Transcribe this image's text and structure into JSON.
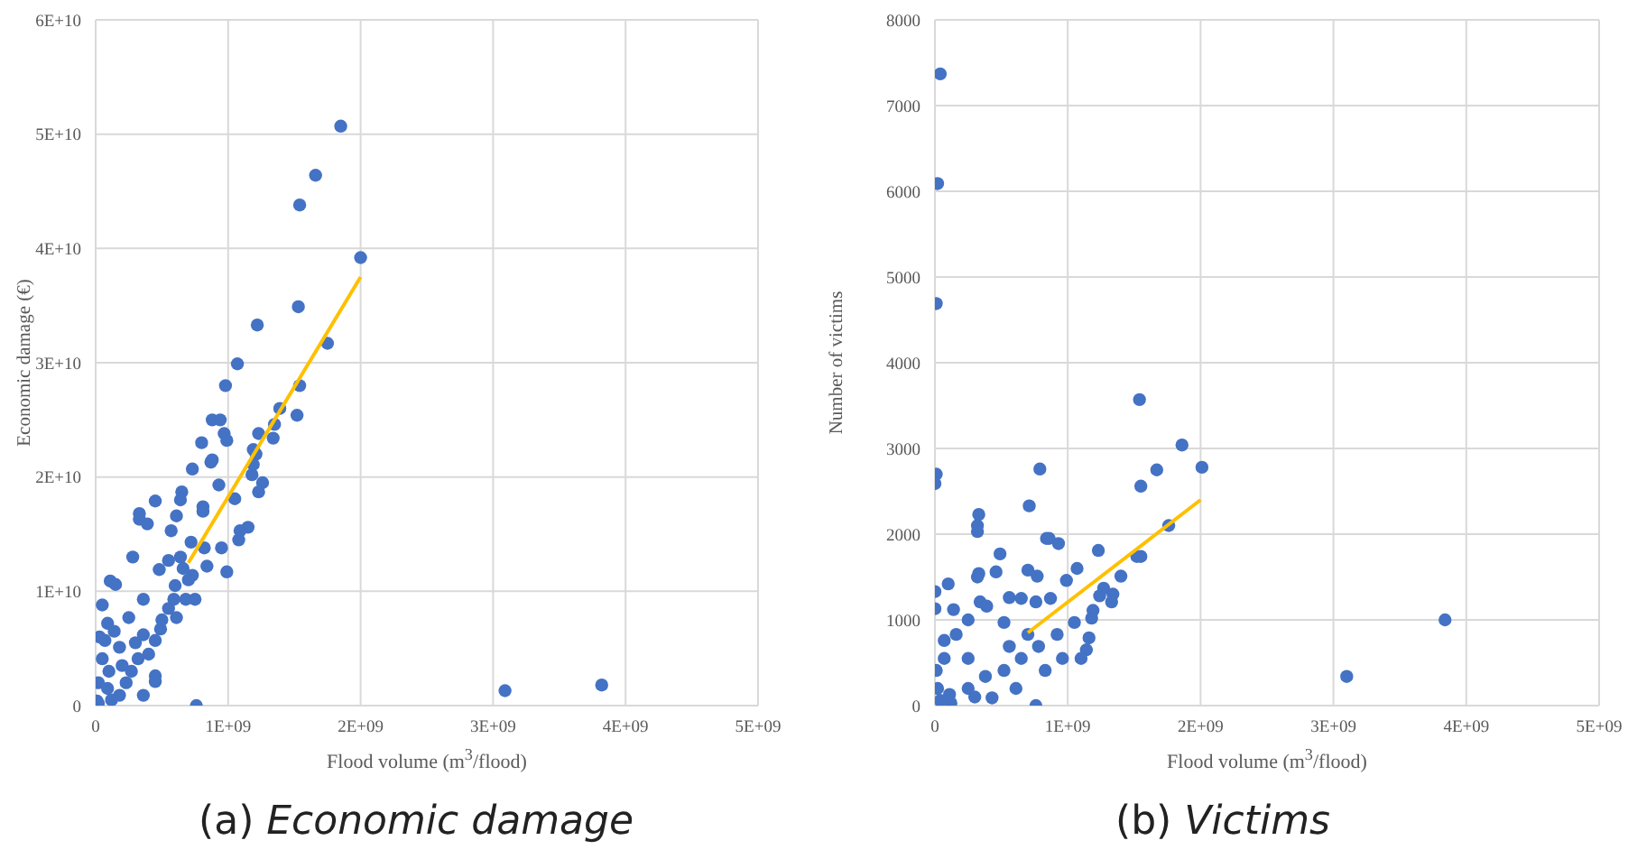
{
  "chart_data": [
    {
      "type": "scatter",
      "xlabel": "Flood volume (m$^{3}$/flood)",
      "ylabel": "Economic damage (€)",
      "annotations": [
        "(a) Economic damage"
      ],
      "xlim": [
        0,
        5000000000.0
      ],
      "xticks": [
        0,
        {
          "value": 1000000000.0,
          "label": "1E+09"
        },
        {
          "value": 2000000000.0,
          "label": "2E+09"
        },
        {
          "value": 3000000000.0,
          "label": "3E+09"
        },
        {
          "value": 4000000000.0,
          "label": "4E+09"
        },
        {
          "value": 5000000000.0,
          "label": "5E+09"
        }
      ],
      "ylim": [
        0,
        60000000000.0
      ],
      "yticks": [
        0,
        {
          "value": 10000000000.0,
          "label": "1E+10"
        },
        {
          "value": 20000000000.0,
          "label": "2E+10"
        },
        {
          "value": 30000000000.0,
          "label": "3E+10"
        },
        {
          "value": 40000000000.0,
          "label": "4E+10"
        },
        {
          "value": 50000000000.0,
          "label": "5E+10"
        },
        {
          "value": 60000000000.0,
          "label": "6E+10"
        }
      ],
      "grid": true,
      "marker": "circle",
      "series": [
        {
          "type": "scatter",
          "color": "#4472c4",
          "x": [
            1850000000.0,
            1660000000.0,
            1540000000.0,
            2000000000.0,
            1530000000.0,
            1220000000.0,
            1750000000.0,
            1070000000.0,
            980000000.0,
            1540000000.0,
            1390000000.0,
            1520000000.0,
            880000000.0,
            940000000.0,
            1350000000.0,
            1230000000.0,
            970000000.0,
            990000000.0,
            1340000000.0,
            800000000.0,
            1190000000.0,
            1210000000.0,
            730000000.0,
            880000000.0,
            870000000.0,
            1190000000.0,
            1180000000.0,
            1260000000.0,
            1230000000.0,
            930000000.0,
            650000000.0,
            640000000.0,
            450000000.0,
            1050000000.0,
            810000000.0,
            810000000.0,
            330000000.0,
            330000000.0,
            390000000.0,
            610000000.0,
            570000000.0,
            1150000000.0,
            1080000000.0,
            1090000000.0,
            720000000.0,
            280000000.0,
            820000000.0,
            950000000.0,
            990000000.0,
            640000000.0,
            550000000.0,
            840000000.0,
            730000000.0,
            110000000.0,
            150000000.0,
            480000000.0,
            360000000.0,
            590000000.0,
            680000000.0,
            750000000.0,
            50000000.0,
            90000000.0,
            250000000.0,
            490000000.0,
            610000000.0,
            450000000.0,
            360000000.0,
            180000000.0,
            320000000.0,
            450000000.0,
            450000000.0,
            760000000.0,
            50000000.0,
            20000000.0,
            10000000.0,
            90000000.0,
            180000000.0,
            270000000.0,
            70000000.0,
            230000000.0,
            360000000.0,
            3090000000.0,
            3820000000.0,
            30000000.0,
            100000000.0,
            140000000.0,
            200000000.0,
            300000000.0,
            400000000.0,
            500000000.0,
            550000000.0,
            600000000.0,
            660000000.0,
            700000000.0,
            20000000.0,
            120000000.0
          ],
          "values": [
            50700000000.0,
            46400000000.0,
            43800000000.0,
            39200000000.0,
            34900000000.0,
            33300000000.0,
            31700000000.0,
            29900000000.0,
            28000000000.0,
            28000000000.0,
            26000000000.0,
            25400000000.0,
            25000000000.0,
            25000000000.0,
            24600000000.0,
            23800000000.0,
            23800000000.0,
            23200000000.0,
            23400000000.0,
            23000000000.0,
            22400000000.0,
            22000000000.0,
            20700000000.0,
            21500000000.0,
            21300000000.0,
            21100000000.0,
            20200000000.0,
            19500000000.0,
            18700000000.0,
            19300000000.0,
            18700000000.0,
            18000000000.0,
            17900000000.0,
            18100000000.0,
            17400000000.0,
            17000000000.0,
            16800000000.0,
            16300000000.0,
            15900000000.0,
            16600000000.0,
            15300000000.0,
            15600000000.0,
            14500000000.0,
            15300000000.0,
            14300000000.0,
            13000000000.0,
            13800000000.0,
            13800000000.0,
            11700000000.0,
            13000000000.0,
            12700000000.0,
            12200000000.0,
            11400000000.0,
            10900000000.0,
            10600000000.0,
            11900000000.0,
            9300000000.0,
            9300000000.0,
            9300000000.0,
            9300000000.0,
            8800000000.0,
            7200000000.0,
            7700000000.0,
            6700000000.0,
            7700000000.0,
            5700000000.0,
            6200000000.0,
            5100000000.0,
            4100000000.0,
            2600000000.0,
            2100000000.0,
            0,
            4100000000.0,
            2000000000.0,
            400000000.0,
            1500000000.0,
            900000000.0,
            3000000000.0,
            5700000000.0,
            2000000000.0,
            900000000.0,
            1300000000.0,
            1800000000.0,
            6000000000.0,
            3000000000.0,
            6500000000.0,
            3500000000.0,
            5500000000.0,
            4500000000.0,
            7500000000.0,
            8500000000.0,
            10500000000.0,
            12000000000.0,
            11000000000.0,
            200000000.0,
            500000000.0
          ]
        },
        {
          "type": "line",
          "color": "#ffc000",
          "marker": "none",
          "x": [
            700000000.0,
            2000000000.0
          ],
          "values": [
            12500000000.0,
            37500000000.0
          ]
        }
      ]
    },
    {
      "type": "scatter",
      "xlabel": "Flood volume (m$^{3}$/flood)",
      "ylabel": "Number of victims",
      "annotations": [
        "(b) Victims"
      ],
      "xlim": [
        0,
        5000000000.0
      ],
      "xticks": [
        0,
        {
          "value": 1000000000.0,
          "label": "1E+09"
        },
        {
          "value": 2000000000.0,
          "label": "2E+09"
        },
        {
          "value": 3000000000.0,
          "label": "3E+09"
        },
        {
          "value": 4000000000.0,
          "label": "4E+09"
        },
        {
          "value": 5000000000.0,
          "label": "5E+09"
        }
      ],
      "ylim": [
        0,
        8000
      ],
      "yticks": [
        0,
        1000,
        2000,
        3000,
        4000,
        5000,
        6000,
        7000,
        8000
      ],
      "grid": true,
      "marker": "circle",
      "series": [
        {
          "type": "scatter",
          "color": "#4472c4",
          "x": [
            40000000.0,
            20000000.0,
            10000000.0,
            10000000.0,
            0,
            790000000.0,
            710000000.0,
            330000000.0,
            320000000.0,
            320000000.0,
            840000000.0,
            860000000.0,
            930000000.0,
            490000000.0,
            700000000.0,
            770000000.0,
            330000000.0,
            320000000.0,
            460000000.0,
            100000000.0,
            0,
            0,
            140000000.0,
            250000000.0,
            560000000.0,
            650000000.0,
            760000000.0,
            870000000.0,
            520000000.0,
            340000000.0,
            390000000.0,
            990000000.0,
            1070000000.0,
            1540000000.0,
            1860000000.0,
            1670000000.0,
            2010000000.0,
            1550000000.0,
            1760000000.0,
            1230000000.0,
            1520000000.0,
            1550000000.0,
            1400000000.0,
            1270000000.0,
            1340000000.0,
            1330000000.0,
            1240000000.0,
            1190000000.0,
            1180000000.0,
            1160000000.0,
            3100000000.0,
            3840000000.0,
            760000000.0,
            70000000.0,
            20000000.0,
            110000000.0,
            250000000.0,
            380000000.0,
            520000000.0,
            650000000.0,
            780000000.0,
            920000000.0,
            1050000000.0,
            430000000.0,
            610000000.0,
            830000000.0,
            700000000.0,
            560000000.0,
            250000000.0,
            160000000.0,
            70000000.0,
            10000000.0,
            40000000.0,
            960000000.0,
            1140000000.0,
            1100000000.0,
            120000000.0,
            300000000.0
          ],
          "values": [
            7370,
            6090,
            4690,
            2700,
            2590,
            2760,
            2330,
            2230,
            2100,
            2030,
            1950,
            1950,
            1890,
            1770,
            1580,
            1510,
            1540,
            1500,
            1560,
            1420,
            1330,
            1130,
            1120,
            1000,
            1260,
            1250,
            1210,
            1250,
            970,
            1210,
            1160,
            1460,
            1600,
            3570,
            3040,
            2750,
            2780,
            2560,
            2100,
            1810,
            1740,
            1740,
            1510,
            1370,
            1300,
            1210,
            1280,
            1110,
            1020,
            790,
            340,
            1000,
            0,
            550,
            200,
            130,
            200,
            340,
            410,
            550,
            690,
            830,
            970,
            90,
            200,
            410,
            830,
            690,
            550,
            830,
            760,
            410,
            60,
            550,
            650,
            550,
            30,
            100
          ]
        },
        {
          "type": "line",
          "color": "#ffc000",
          "marker": "none",
          "x": [
            700000000.0,
            2000000000.0
          ],
          "values": [
            850,
            2400
          ]
        }
      ]
    }
  ]
}
